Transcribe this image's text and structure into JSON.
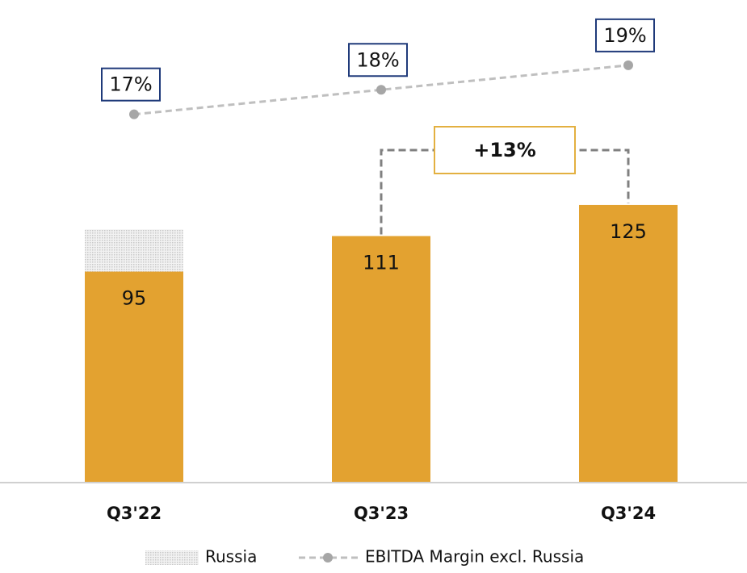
{
  "chart_data": {
    "type": "bar",
    "categories": [
      "Q3'22",
      "Q3'23",
      "Q3'24"
    ],
    "ylim": [
      0,
      210
    ],
    "y2lim": [
      2,
      21
    ],
    "series": [
      {
        "color": "#e3a230",
        "values": [
          95,
          111,
          125
        ]
      },
      {
        "name": "Russia",
        "color": "#dcdcdc",
        "values": [
          19,
          null,
          null
        ]
      },
      {
        "name": "EBITDA Margin excl. Russia",
        "type": "line",
        "axis": "y2",
        "color": "#bfbfbf",
        "values": [
          17,
          18,
          19
        ],
        "value_labels": [
          "17%",
          "18%",
          "19%"
        ]
      }
    ],
    "annotations": [
      {
        "text": "+13%",
        "between": [
          "Q3'23",
          "Q3'24"
        ]
      }
    ],
    "legend": "bottom"
  }
}
